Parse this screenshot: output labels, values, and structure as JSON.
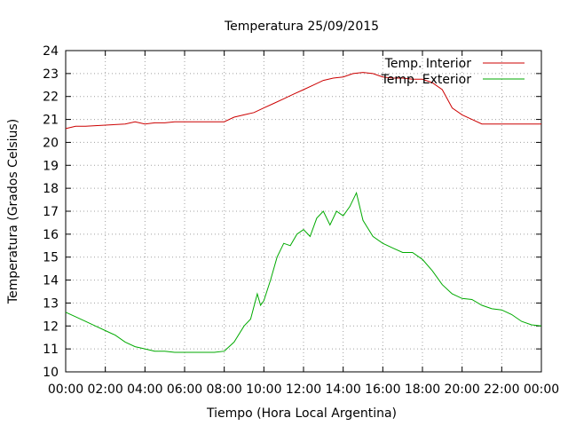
{
  "chart_data": {
    "type": "line",
    "title": "Temperatura 25/09/2015",
    "xlabel": "Tiempo (Hora Local Argentina)",
    "ylabel": "Temperatura (Grados Celsius)",
    "xlim": [
      "00:00",
      "24:00"
    ],
    "ylim": [
      10,
      24
    ],
    "x_ticks": [
      "00:00",
      "02:00",
      "04:00",
      "06:00",
      "08:00",
      "10:00",
      "12:00",
      "14:00",
      "16:00",
      "18:00",
      "20:00",
      "22:00",
      "00:00"
    ],
    "y_ticks": [
      10,
      11,
      12,
      13,
      14,
      15,
      16,
      17,
      18,
      19,
      20,
      21,
      22,
      23,
      24
    ],
    "grid": true,
    "legend_position": "top-right",
    "series": [
      {
        "name": "Temp. Interior",
        "color": "#cc0000",
        "x": [
          "00:00",
          "00:30",
          "01:00",
          "02:00",
          "03:00",
          "03:30",
          "04:00",
          "04:30",
          "05:00",
          "05:30",
          "06:00",
          "07:00",
          "08:00",
          "08:30",
          "09:00",
          "09:30",
          "10:00",
          "10:30",
          "11:00",
          "11:30",
          "12:00",
          "12:30",
          "13:00",
          "13:30",
          "14:00",
          "14:30",
          "15:00",
          "15:30",
          "16:00",
          "16:30",
          "17:00",
          "17:30",
          "18:00",
          "18:30",
          "19:00",
          "19:15",
          "19:30",
          "20:00",
          "20:30",
          "21:00",
          "22:00",
          "23:00",
          "24:00"
        ],
        "values": [
          20.6,
          20.7,
          20.7,
          20.75,
          20.8,
          20.9,
          20.8,
          20.85,
          20.85,
          20.9,
          20.9,
          20.9,
          20.9,
          21.1,
          21.2,
          21.3,
          21.5,
          21.7,
          21.9,
          22.1,
          22.3,
          22.5,
          22.7,
          22.8,
          22.85,
          23.0,
          23.05,
          23.0,
          22.85,
          22.8,
          22.8,
          22.75,
          22.75,
          22.6,
          22.3,
          21.9,
          21.5,
          21.2,
          21.0,
          20.8,
          20.8,
          20.8,
          20.8
        ]
      },
      {
        "name": "Temp. Exterior",
        "color": "#00aa00",
        "x": [
          "00:00",
          "00:30",
          "01:00",
          "01:30",
          "02:00",
          "02:30",
          "03:00",
          "03:30",
          "04:00",
          "04:30",
          "05:00",
          "05:30",
          "06:00",
          "06:30",
          "07:00",
          "07:30",
          "08:00",
          "08:30",
          "09:00",
          "09:20",
          "09:40",
          "09:50",
          "10:00",
          "10:20",
          "10:40",
          "11:00",
          "11:20",
          "11:40",
          "12:00",
          "12:20",
          "12:40",
          "13:00",
          "13:20",
          "13:40",
          "14:00",
          "14:20",
          "14:40",
          "15:00",
          "15:30",
          "16:00",
          "16:30",
          "17:00",
          "17:30",
          "18:00",
          "18:30",
          "19:00",
          "19:30",
          "20:00",
          "20:30",
          "21:00",
          "21:30",
          "22:00",
          "22:30",
          "23:00",
          "23:30",
          "24:00"
        ],
        "values": [
          12.6,
          12.4,
          12.2,
          12.0,
          11.8,
          11.6,
          11.3,
          11.1,
          11.0,
          10.9,
          10.9,
          10.85,
          10.85,
          10.85,
          10.85,
          10.85,
          10.9,
          11.3,
          12.0,
          12.3,
          13.4,
          12.9,
          13.1,
          14.0,
          15.0,
          15.6,
          15.5,
          16.0,
          16.2,
          15.9,
          16.7,
          17.0,
          16.4,
          17.0,
          16.8,
          17.2,
          17.8,
          16.6,
          15.9,
          15.6,
          15.4,
          15.2,
          15.2,
          14.9,
          14.4,
          13.8,
          13.4,
          13.2,
          13.15,
          12.9,
          12.75,
          12.7,
          12.5,
          12.2,
          12.05,
          12.0
        ]
      }
    ]
  }
}
